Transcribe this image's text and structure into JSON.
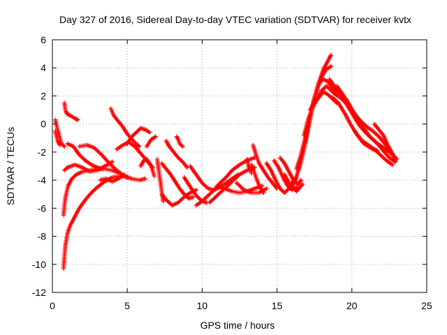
{
  "chart_data": {
    "type": "scatter",
    "title": "Day 327 of 2016, Sidereal Day-to-day VTEC variation (SDTVAR) for receiver kvtx",
    "xlabel": "GPS time / hours",
    "ylabel": "SDTVAR / TECUs",
    "xlim": [
      0,
      25
    ],
    "ylim": [
      -12,
      6
    ],
    "x_ticks": [
      0,
      5,
      10,
      15,
      20,
      25
    ],
    "y_ticks": [
      -12,
      -10,
      -8,
      -6,
      -4,
      -2,
      0,
      2,
      4,
      6
    ],
    "x_tick_labels": [
      "0",
      "5",
      "10",
      "15",
      "20",
      "25"
    ],
    "y_tick_labels": [
      "-12",
      "-10",
      "-8",
      "-6",
      "-4",
      "-2",
      "0",
      "2",
      "4",
      "6"
    ],
    "grid": true,
    "marker": "+",
    "series": [
      {
        "name": "SDTVAR",
        "color": "#ff0000",
        "arcs": [
          {
            "x": [
              0.2,
              0.3,
              0.45,
              0.6,
              0.8
            ],
            "y": [
              0.3,
              -0.2,
              -0.8,
              -1.4,
              -1.6
            ]
          },
          {
            "x": [
              0.2,
              0.35,
              0.5
            ],
            "y": [
              -0.5,
              -1.2,
              -1.5
            ]
          },
          {
            "x": [
              0.8,
              0.85,
              0.9,
              1.0,
              1.2,
              1.5,
              1.7
            ],
            "y": [
              1.5,
              1.1,
              0.9,
              0.7,
              0.6,
              0.4,
              0.3
            ]
          },
          {
            "x": [
              0.75,
              0.78,
              0.82,
              0.88,
              1.0,
              1.2,
              1.5,
              1.8,
              2.2,
              2.6,
              3.0,
              3.5,
              4.0,
              4.5,
              5.0
            ],
            "y": [
              -10.3,
              -9.8,
              -9.2,
              -8.6,
              -7.8,
              -7.2,
              -6.6,
              -6.0,
              -5.4,
              -4.9,
              -4.5,
              -4.1,
              -3.8,
              -3.7,
              -3.8
            ]
          },
          {
            "x": [
              0.75,
              0.8,
              0.9,
              1.05,
              1.3,
              1.6,
              2.0,
              2.5,
              3.0,
              3.5,
              4.0,
              4.5
            ],
            "y": [
              -6.5,
              -5.8,
              -5.1,
              -4.4,
              -3.9,
              -3.6,
              -3.4,
              -3.3,
              -3.2,
              -3.2,
              -3.3,
              -3.5
            ]
          },
          {
            "x": [
              0.8,
              1.0,
              1.5,
              2.0,
              2.5,
              3.0,
              3.5,
              4.0
            ],
            "y": [
              -3.3,
              -3.1,
              -2.9,
              -3.1,
              -3.4,
              -3.3,
              -3.0,
              -2.7
            ]
          },
          {
            "x": [
              1.0,
              1.4,
              1.8,
              2.2,
              2.6,
              3.0,
              3.4
            ],
            "y": [
              -1.4,
              -1.6,
              -2.2,
              -2.6,
              -2.9,
              -3.1,
              -3.2
            ]
          },
          {
            "x": [
              1.8,
              2.3,
              2.8,
              3.3,
              3.8,
              4.3,
              4.8,
              5.3,
              5.8,
              6.2
            ],
            "y": [
              -1.6,
              -1.5,
              -1.7,
              -2.2,
              -2.8,
              -3.3,
              -3.7,
              -3.9,
              -4.0,
              -3.9
            ]
          },
          {
            "x": [
              3.2,
              3.6,
              4.0,
              4.4,
              4.8
            ],
            "y": [
              -4.0,
              -3.9,
              -4.1,
              -3.9,
              -3.6
            ]
          },
          {
            "x": [
              3.9,
              4.1,
              4.4,
              4.7,
              5.0,
              5.4,
              5.8
            ],
            "y": [
              1.1,
              0.6,
              0.2,
              -0.2,
              -0.7,
              -1.2,
              -1.6
            ]
          },
          {
            "x": [
              4.3,
              4.7,
              5.1,
              5.5,
              5.9,
              6.3,
              6.7
            ],
            "y": [
              -1.8,
              -1.5,
              -1.3,
              -1.6,
              -2.1,
              -2.6,
              -3.1
            ]
          },
          {
            "x": [
              5.0,
              5.3,
              5.6,
              5.9,
              6.2,
              6.5
            ],
            "y": [
              -1.4,
              -0.9,
              -0.6,
              -0.3,
              -0.4,
              -0.6
            ]
          },
          {
            "x": [
              5.9,
              6.1,
              6.3,
              6.6,
              6.8
            ],
            "y": [
              -3.0,
              -2.6,
              -2.5,
              -3.0,
              -3.7
            ]
          },
          {
            "x": [
              6.3,
              6.6,
              6.9
            ],
            "y": [
              -1.6,
              -1.1,
              -0.9
            ]
          },
          {
            "x": [
              7.0,
              7.1,
              7.2,
              7.3,
              7.4
            ],
            "y": [
              -2.5,
              -3.3,
              -4.0,
              -4.8,
              -5.5
            ]
          },
          {
            "x": [
              7.3,
              7.6,
              7.9,
              8.2,
              8.5,
              8.8,
              9.1,
              9.4
            ],
            "y": [
              -2.8,
              -3.2,
              -3.6,
              -4.1,
              -4.6,
              -5.0,
              -5.3,
              -5.2
            ]
          },
          {
            "x": [
              7.6,
              7.8,
              8.1,
              8.4,
              8.7,
              9.0
            ],
            "y": [
              -1.2,
              -1.6,
              -2.0,
              -2.4,
              -2.7,
              -3.1
            ]
          },
          {
            "x": [
              7.3,
              7.6,
              8.0,
              8.4,
              8.8,
              9.2,
              9.6
            ],
            "y": [
              -5.0,
              -5.4,
              -5.8,
              -5.6,
              -5.2,
              -4.9,
              -4.7
            ]
          },
          {
            "x": [
              8.3,
              8.4,
              8.5,
              8.7
            ],
            "y": [
              -0.9,
              -1.1,
              -1.4,
              -1.6
            ]
          },
          {
            "x": [
              8.8,
              9.1,
              9.4,
              9.7,
              10.0,
              10.3
            ],
            "y": [
              -3.8,
              -4.3,
              -4.8,
              -5.2,
              -5.5,
              -5.6
            ]
          },
          {
            "x": [
              9.2,
              9.6,
              10.0,
              10.4,
              10.8,
              11.2,
              11.6,
              12.0,
              12.4
            ],
            "y": [
              -3.0,
              -3.6,
              -4.2,
              -4.6,
              -4.7,
              -4.5,
              -4.2,
              -3.9,
              -3.6
            ]
          },
          {
            "x": [
              9.6,
              10.0,
              10.4,
              10.8,
              11.2,
              11.6,
              12.0,
              12.5,
              13.0,
              13.5
            ],
            "y": [
              -5.8,
              -5.5,
              -5.1,
              -4.7,
              -4.2,
              -3.8,
              -3.3,
              -2.9,
              -2.6,
              -2.4
            ]
          },
          {
            "x": [
              10.5,
              10.9,
              11.3,
              11.7,
              12.1,
              12.5,
              13.0,
              13.5
            ],
            "y": [
              -5.6,
              -5.2,
              -4.8,
              -4.4,
              -4.0,
              -3.6,
              -3.3,
              -3.1
            ]
          },
          {
            "x": [
              11.0,
              11.5,
              12.0,
              12.5,
              13.0,
              13.5,
              14.0
            ],
            "y": [
              -4.4,
              -4.6,
              -4.8,
              -4.9,
              -4.8,
              -4.6,
              -4.4
            ]
          },
          {
            "x": [
              12.3,
              12.8,
              13.3,
              13.8,
              14.3
            ],
            "y": [
              -4.2,
              -4.7,
              -4.9,
              -4.9,
              -4.6
            ]
          },
          {
            "x": [
              13.0,
              13.1,
              13.2,
              13.3
            ],
            "y": [
              -2.5,
              -3.0,
              -3.2,
              -3.5
            ]
          },
          {
            "x": [
              13.3,
              13.5,
              13.7,
              13.9,
              14.1
            ],
            "y": [
              -2.9,
              -3.5,
              -4.1,
              -4.6,
              -4.9
            ]
          },
          {
            "x": [
              13.4,
              13.6,
              13.8,
              14.1,
              14.4,
              14.7,
              15.0
            ],
            "y": [
              -1.5,
              -2.2,
              -2.8,
              -3.3,
              -3.8,
              -4.2,
              -4.6
            ]
          },
          {
            "x": [
              14.3,
              14.6,
              14.9,
              15.2,
              15.5,
              15.8,
              16.1
            ],
            "y": [
              -2.8,
              -3.3,
              -4.0,
              -4.6,
              -4.9,
              -4.6,
              -4.0
            ]
          },
          {
            "x": [
              14.8,
              15.1,
              15.4,
              15.7,
              16.0,
              16.3
            ],
            "y": [
              -2.6,
              -3.1,
              -3.8,
              -4.4,
              -4.7,
              -4.5
            ]
          },
          {
            "x": [
              15.2,
              15.5,
              15.8,
              16.1,
              16.4,
              16.6
            ],
            "y": [
              -2.4,
              -2.8,
              -3.4,
              -4.0,
              -4.3,
              -4.0
            ]
          },
          {
            "x": [
              15.5,
              15.9,
              16.3,
              16.7
            ],
            "y": [
              -3.6,
              -4.4,
              -4.8,
              -4.3
            ]
          },
          {
            "x": [
              16.0,
              16.3,
              16.6,
              16.9,
              17.2,
              17.5,
              17.8,
              18.1,
              18.4,
              18.6
            ],
            "y": [
              -4.5,
              -3.8,
              -2.6,
              -1.2,
              0.4,
              1.8,
              3.0,
              3.9,
              4.5,
              4.9
            ]
          },
          {
            "x": [
              16.2,
              16.5,
              16.8,
              17.1,
              17.4,
              17.7,
              18.0,
              18.3,
              18.6
            ],
            "y": [
              -4.0,
              -3.1,
              -1.8,
              -0.2,
              1.3,
              2.5,
              3.4,
              3.9,
              4.1
            ]
          },
          {
            "x": [
              16.3,
              16.6,
              16.9,
              17.2,
              17.5,
              17.8,
              18.1,
              18.4,
              18.7,
              19.0
            ],
            "y": [
              -3.2,
              -2.2,
              -0.9,
              0.6,
              1.9,
              2.9,
              3.2,
              3.0,
              2.6,
              2.3
            ]
          },
          {
            "x": [
              16.8,
              17.1,
              17.4,
              17.7,
              18.0,
              18.3,
              18.6,
              18.9,
              19.2,
              19.5
            ],
            "y": [
              -0.8,
              0.4,
              1.2,
              1.8,
              2.4,
              2.7,
              2.4,
              2.1,
              1.9,
              1.6
            ]
          },
          {
            "x": [
              17.2,
              17.5,
              17.8,
              18.1,
              18.4,
              18.7,
              19.0
            ],
            "y": [
              1.0,
              1.5,
              1.9,
              2.3,
              2.1,
              1.8,
              1.5
            ]
          },
          {
            "x": [
              18.5,
              18.9,
              19.3,
              19.7,
              20.1,
              20.5,
              20.9,
              21.3,
              21.7,
              22.1,
              22.5,
              22.9
            ],
            "y": [
              3.2,
              2.6,
              2.0,
              1.3,
              0.6,
              -0.1,
              -0.6,
              -1.0,
              -1.4,
              -1.9,
              -2.4,
              -2.7
            ]
          },
          {
            "x": [
              18.7,
              19.1,
              19.5,
              19.9,
              20.3,
              20.7,
              21.1,
              21.5,
              21.9,
              22.3,
              22.7
            ],
            "y": [
              1.9,
              1.5,
              0.8,
              0.0,
              -0.7,
              -1.2,
              -1.5,
              -1.8,
              -2.2,
              -2.6,
              -2.9
            ]
          },
          {
            "x": [
              19.0,
              19.4,
              19.8,
              20.2,
              20.6,
              21.0,
              21.4,
              21.8,
              22.2,
              22.6,
              23.0
            ],
            "y": [
              2.7,
              2.1,
              1.4,
              0.7,
              0.2,
              -0.2,
              -0.5,
              -0.9,
              -1.4,
              -2.0,
              -2.5
            ]
          },
          {
            "x": [
              19.6,
              20.0,
              20.4,
              20.8,
              21.2,
              21.6,
              22.0,
              22.4,
              22.8
            ],
            "y": [
              1.8,
              1.0,
              0.4,
              -0.3,
              -0.9,
              -1.3,
              -1.6,
              -1.9,
              -2.3
            ]
          },
          {
            "x": [
              20.2,
              20.5,
              20.8,
              21.1,
              21.4,
              21.7
            ],
            "y": [
              -0.5,
              -1.0,
              -1.4,
              -1.6,
              -1.8,
              -1.9
            ]
          },
          {
            "x": [
              21.5,
              21.8,
              22.1,
              22.4,
              22.7,
              22.9
            ],
            "y": [
              0.0,
              -0.4,
              -0.8,
              -1.5,
              -2.1,
              -2.6
            ]
          }
        ]
      }
    ]
  }
}
